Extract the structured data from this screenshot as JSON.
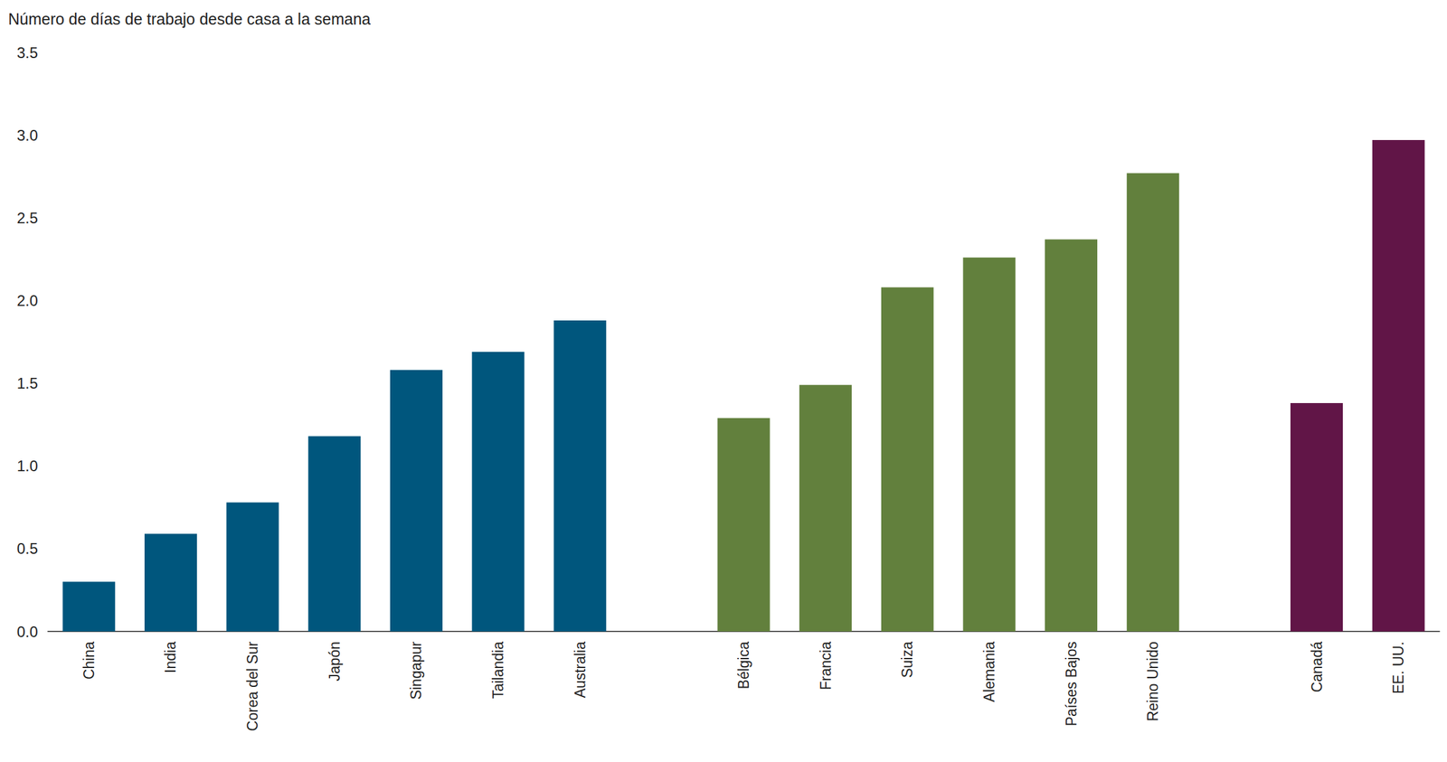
{
  "chart_data": {
    "type": "bar",
    "title": "Número de días de trabajo desde casa a la semana",
    "categories": [
      "China",
      "India",
      "Corea del Sur",
      "Japón",
      "Singapur",
      "Tailandia",
      "Australia",
      null,
      "Bélgica",
      "Francia",
      "Suiza",
      "Alemania",
      "Países Bajos",
      "Reino Unido",
      null,
      "Canadá",
      "EE. UU."
    ],
    "series": [
      {
        "color": "#00567d",
        "values": [
          0.3,
          0.59,
          0.78,
          1.18,
          1.58,
          1.69,
          1.88,
          null,
          null,
          null,
          null,
          null,
          null,
          null,
          null,
          null,
          null
        ]
      },
      {
        "color": "#62803d",
        "values": [
          null,
          null,
          null,
          null,
          null,
          null,
          null,
          null,
          1.29,
          1.49,
          2.08,
          2.26,
          2.37,
          2.77,
          null,
          null,
          null
        ]
      },
      {
        "color": "#611547",
        "values": [
          null,
          null,
          null,
          null,
          null,
          null,
          null,
          null,
          null,
          null,
          null,
          null,
          null,
          null,
          null,
          1.38,
          2.97
        ]
      }
    ],
    "ylim": [
      0,
      3.5
    ],
    "yticks": [
      {
        "value": 0,
        "label": "0.0"
      },
      0.5,
      {
        "value": 1,
        "label": "1.0"
      },
      1.5,
      {
        "value": 2,
        "label": "2.0"
      },
      2.5,
      {
        "value": 3,
        "label": "3.0"
      },
      3.5
    ],
    "grid": false
  }
}
